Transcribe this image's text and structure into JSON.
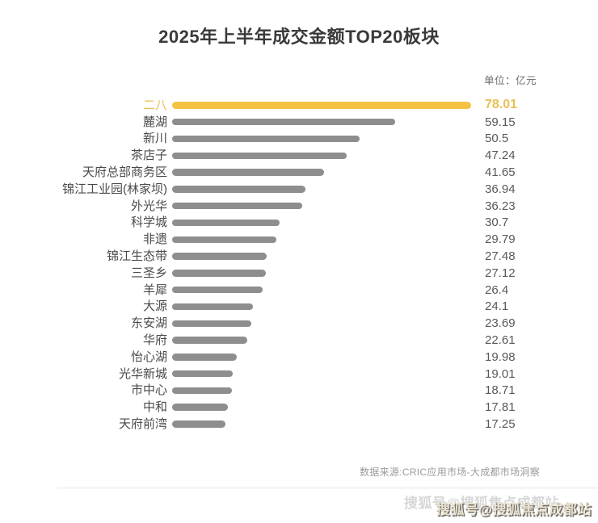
{
  "header": {
    "title": "2025年上半年成交金额TOP20板块",
    "unit_label": "单位：亿元"
  },
  "footer": {
    "source_note": "数据来源:CRIC应用市场-大成都市场洞察",
    "watermark": "搜狐号@搜狐焦点成都站"
  },
  "colors": {
    "title_text": "#3a3a3a",
    "label_text": "#4a4a4a",
    "value_text": "#595959",
    "note_text": "#9a9a9a",
    "bar_gray": "#8e8e8e",
    "highlight_bar": "#f5c243",
    "highlight_text": "#e9be55"
  },
  "chart_data": {
    "type": "bar",
    "orientation": "horizontal",
    "title": "2025年上半年成交金额TOP20板块",
    "unit": "亿元",
    "categories": [
      "二八",
      "麓湖",
      "新川",
      "茶店子",
      "天府总部商务区",
      "锦江工业园(林家坝)",
      "外光华",
      "科学城",
      "非遗",
      "锦江生态带",
      "三圣乡",
      "羊犀",
      "大源",
      "东安湖",
      "华府",
      "怡心湖",
      "光华新城",
      "市中心",
      "中和",
      "天府前湾"
    ],
    "values": [
      78.01,
      59.15,
      50.5,
      47.24,
      41.65,
      36.94,
      36.23,
      30.7,
      29.79,
      27.48,
      27.12,
      26.4,
      24.1,
      23.69,
      22.61,
      19.98,
      19.01,
      18.71,
      17.81,
      17.25
    ],
    "highlighted_index": 0,
    "value_labels_shown": true,
    "xlim": [
      4,
      78.01
    ],
    "grid": false,
    "legend": false
  }
}
